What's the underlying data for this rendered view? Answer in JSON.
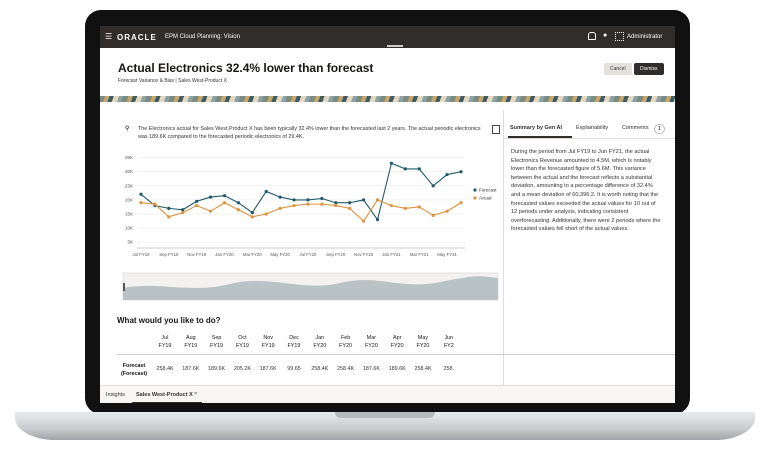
{
  "app": {
    "brand": "ORACLE",
    "product": "EPM Cloud Planning: Vision",
    "user": "Administrator"
  },
  "header": {
    "title": "Actual Electronics 32.4% lower than forecast",
    "subtitle": "Forecast Variance & Bias | Sales West-Product X",
    "buttons": [
      "Cancel",
      "Dismiss"
    ]
  },
  "insight": {
    "text": "The Electronics actual for Sales West.Product X has been typically 32.4% lower than the forecasted last 2 years. The actual periodic electronics was 189.6K compared to the forecasted periodic electronics of 29.4K."
  },
  "chart": {
    "type": "line",
    "categories": [
      "Jul FY19",
      null,
      "Sep FY19",
      null,
      "Nov FY19",
      null,
      "Jan FY20",
      null,
      "Mar FY20",
      null,
      "May FY20",
      null,
      "Jul FY20",
      null,
      "Sep FY20",
      null,
      "Nov FY20",
      null,
      "Jan FY21",
      null,
      "Mar FY21",
      null,
      "May FY21",
      null
    ],
    "series": [
      {
        "name": "Forecast",
        "color": "#1f5a6b",
        "values": [
          22000,
          18000,
          17000,
          16500,
          19500,
          21000,
          21500,
          19000,
          15500,
          23000,
          21000,
          20000,
          20000,
          20500,
          19000,
          19000,
          20000,
          13000,
          33000,
          31000,
          31000,
          25000,
          29000,
          30000
        ]
      },
      {
        "name": "Actual",
        "color": "#e0913a",
        "values": [
          19000,
          18500,
          14000,
          15500,
          18000,
          16000,
          19000,
          16500,
          14000,
          15000,
          17000,
          18000,
          18500,
          18500,
          18000,
          17000,
          12500,
          20000,
          18000,
          17000,
          17500,
          14500,
          16000,
          19000
        ]
      }
    ],
    "ylim": [
      4000,
      37000
    ],
    "yticks": [
      {
        "value": 5000,
        "label": "5K"
      },
      {
        "value": 10000,
        "label": "10K"
      },
      {
        "value": 15000,
        "label": "15K"
      },
      {
        "value": 20000,
        "label": "20K"
      },
      {
        "value": 25000,
        "label": "25K"
      },
      {
        "value": 30000,
        "label": "30K"
      },
      {
        "value": 35000,
        "label": "35K"
      }
    ],
    "grid": true
  },
  "panel": {
    "tabs": [
      "Summary by Gen AI",
      "Explainability",
      "Comments"
    ],
    "comments_count": 1,
    "summary": "During the period from Jul FY19 to Jun FY21, the actual Electronics Revenue amounted to 4.5M, which is notably lower than the forecasted figure of 5.6M. This variance between the actual and the forecast reflects a substantial deviation, amounting to a percentage difference of 32.4% and a mean deviation of 60,396.2. It is worth noting that the forecasted values exceeded the actual values for 10 out of 12 periods under analysis, indicating consistent overforecasting. Additionally, there were 2 periods where the forecasted values fell short of the actual values."
  },
  "actions": {
    "heading": "What would you like to do?",
    "columns": [
      [
        "Jul",
        "FY19"
      ],
      [
        "Aug",
        "FY19"
      ],
      [
        "Sep",
        "FY19"
      ],
      [
        "Oct",
        "FY19"
      ],
      [
        "Nov",
        "FY19"
      ],
      [
        "Dec",
        "FY19"
      ],
      [
        "Jan",
        "FY20"
      ],
      [
        "Feb",
        "FY20"
      ],
      [
        "Mar",
        "FY20"
      ],
      [
        "Apr",
        "FY20"
      ],
      [
        "May",
        "FY20"
      ],
      [
        "Jun",
        "FY2"
      ]
    ],
    "rows": [
      {
        "label": "Forecast (Forecast)",
        "cells": [
          "258.4K",
          "187.6K",
          "189.6K",
          "205.2K",
          "187.6K",
          "99.65",
          "258.4K",
          "258.4K",
          "187.6K",
          "189.6K",
          "258.4K",
          "258."
        ]
      }
    ]
  },
  "footer_tabs": [
    "Insights",
    "Sales West-Product X"
  ]
}
